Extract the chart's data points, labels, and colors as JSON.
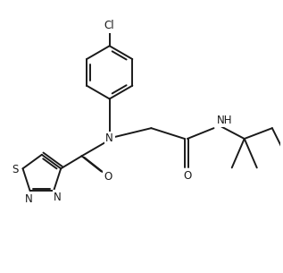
{
  "background_color": "#ffffff",
  "line_color": "#1a1a1a",
  "line_width": 1.4,
  "font_size": 8.5,
  "figsize": [
    3.17,
    3.05
  ],
  "dpi": 100,
  "xlim": [
    0,
    10
  ],
  "ylim": [
    0,
    9.6
  ]
}
